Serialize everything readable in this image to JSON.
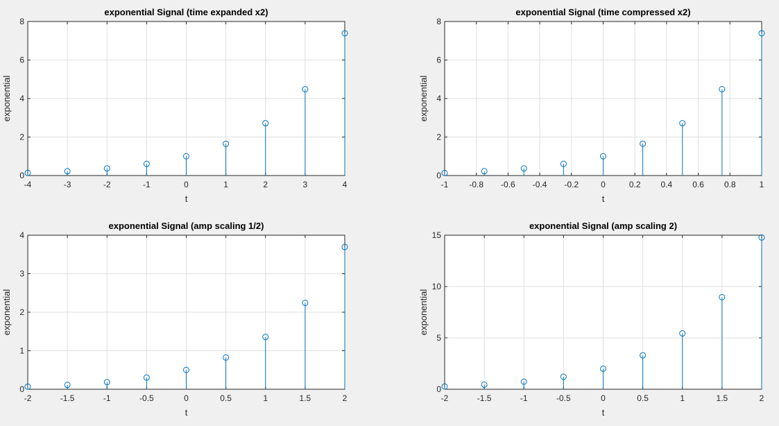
{
  "chart_data": [
    {
      "type": "stem",
      "title": "exponential Signal (time expanded x2)",
      "xlabel": "t",
      "ylabel": "exponential",
      "xlim": [
        -4,
        4
      ],
      "ylim": [
        0,
        8
      ],
      "xticks": [
        "-4",
        "-3",
        "-2",
        "-1",
        "0",
        "1",
        "2",
        "3",
        "4"
      ],
      "yticks": [
        "0",
        "2",
        "4",
        "6",
        "8"
      ],
      "x": [
        -4,
        -3,
        -2,
        -1,
        0,
        1,
        2,
        3,
        4
      ],
      "values": [
        0.135,
        0.223,
        0.368,
        0.607,
        1.0,
        1.649,
        2.718,
        4.482,
        7.389
      ],
      "grid": true,
      "color": "#0072bd"
    },
    {
      "type": "stem",
      "title": "exponential Signal (time compressed x2)",
      "xlabel": "t",
      "ylabel": "exponential",
      "xlim": [
        -1,
        1
      ],
      "ylim": [
        0,
        8
      ],
      "xticks": [
        "-1",
        "-0.8",
        "-0.6",
        "-0.4",
        "-0.2",
        "0",
        "0.2",
        "0.4",
        "0.6",
        "0.8",
        "1"
      ],
      "yticks": [
        "0",
        "2",
        "4",
        "6",
        "8"
      ],
      "x": [
        -1,
        -0.75,
        -0.5,
        -0.25,
        0,
        0.25,
        0.5,
        0.75,
        1
      ],
      "values": [
        0.135,
        0.223,
        0.368,
        0.607,
        1.0,
        1.649,
        2.718,
        4.482,
        7.389
      ],
      "grid": true,
      "color": "#0072bd"
    },
    {
      "type": "stem",
      "title": "exponential Signal (amp scaling 1/2)",
      "xlabel": "t",
      "ylabel": "exponential",
      "xlim": [
        -2,
        2
      ],
      "ylim": [
        0,
        4
      ],
      "xticks": [
        "-2",
        "-1.5",
        "-1",
        "-0.5",
        "0",
        "0.5",
        "1",
        "1.5",
        "2"
      ],
      "yticks": [
        "0",
        "1",
        "2",
        "3",
        "4"
      ],
      "x": [
        -2,
        -1.5,
        -1,
        -0.5,
        0,
        0.5,
        1,
        1.5,
        2
      ],
      "values": [
        0.068,
        0.112,
        0.184,
        0.303,
        0.5,
        0.824,
        1.359,
        2.241,
        3.695
      ],
      "grid": true,
      "color": "#0072bd"
    },
    {
      "type": "stem",
      "title": "exponential Signal (amp scaling 2)",
      "xlabel": "t",
      "ylabel": "exponential",
      "xlim": [
        -2,
        2
      ],
      "ylim": [
        0,
        15
      ],
      "xticks": [
        "-2",
        "-1.5",
        "-1",
        "-0.5",
        "0",
        "0.5",
        "1",
        "1.5",
        "2"
      ],
      "yticks": [
        "0",
        "5",
        "10",
        "15"
      ],
      "x": [
        -2,
        -1.5,
        -1,
        -0.5,
        0,
        0.5,
        1,
        1.5,
        2
      ],
      "values": [
        0.271,
        0.446,
        0.736,
        1.213,
        2.0,
        3.297,
        5.437,
        8.963,
        14.778
      ],
      "grid": true,
      "color": "#0072bd"
    }
  ]
}
